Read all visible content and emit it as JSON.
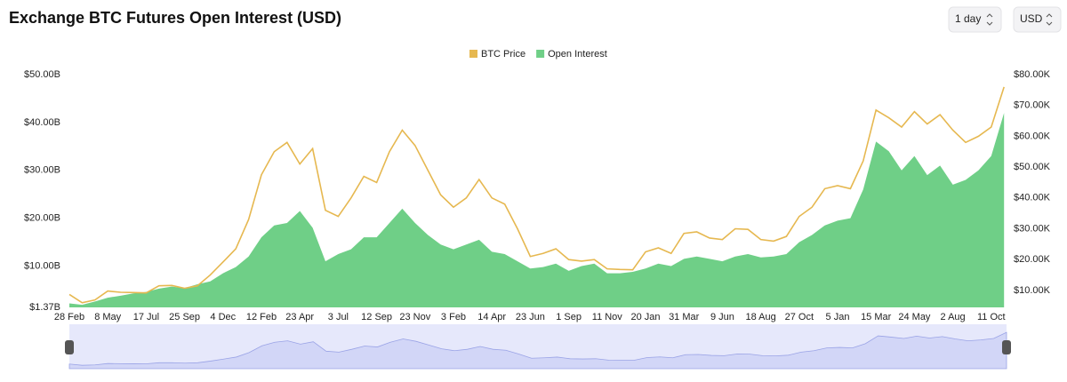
{
  "chart_data": {
    "type": "combo",
    "title": "Exchange BTC Futures Open Interest (USD)",
    "controls": {
      "interval": "1 day",
      "currency": "USD"
    },
    "categories": [
      "28 Feb",
      null,
      null,
      "8 May",
      null,
      null,
      "17 Jul",
      null,
      null,
      "25 Sep",
      null,
      null,
      "4 Dec",
      null,
      null,
      "12 Feb",
      null,
      null,
      "23 Apr",
      null,
      null,
      "3 Jul",
      null,
      null,
      "12 Sep",
      null,
      null,
      "23 Nov",
      null,
      null,
      "3 Feb",
      null,
      null,
      "14 Apr",
      null,
      null,
      "23 Jun",
      null,
      null,
      "1 Sep",
      null,
      null,
      "11 Nov",
      null,
      null,
      "20 Jan",
      null,
      null,
      "31 Mar",
      null,
      null,
      "9 Jun",
      null,
      null,
      "18 Aug",
      null,
      null,
      "27 Oct",
      null,
      null,
      "5 Jan",
      null,
      null,
      "15 Mar",
      null,
      null,
      "24 May",
      null,
      null,
      "2 Aug",
      null,
      null,
      "11 Oct",
      null
    ],
    "series": [
      {
        "name": "BTC Price",
        "color": "#e6b850",
        "type": "line",
        "axis": "y2",
        "values": [
          8.7,
          6.0,
          6.9,
          9.8,
          9.4,
          9.3,
          9.2,
          11.5,
          11.6,
          10.7,
          11.5,
          15.0,
          19.2,
          23.5,
          33.0,
          47.5,
          55.0,
          58.0,
          51.0,
          56.0,
          36.0,
          34.0,
          40.0,
          47.0,
          45.0,
          55.0,
          62.0,
          57.0,
          49.0,
          41.0,
          37.0,
          40.0,
          46.0,
          40.0,
          38.0,
          30.0,
          21.0,
          22.0,
          23.5,
          20.0,
          19.5,
          20.0,
          17.0,
          16.8,
          16.7,
          22.5,
          23.8,
          22.0,
          28.5,
          29.0,
          27.0,
          26.5,
          30.0,
          29.8,
          26.5,
          26.0,
          27.5,
          34.0,
          37.0,
          43.0,
          44.0,
          43.0,
          52.0,
          68.5,
          66.0,
          63.0,
          68.0,
          64.0,
          67.0,
          62.0,
          58.0,
          60.0,
          63.0,
          76.0
        ]
      },
      {
        "name": "Open Interest",
        "color": "#6fcf87",
        "type": "area",
        "axis": "y",
        "values": [
          2.2,
          1.9,
          2.6,
          3.4,
          3.8,
          4.3,
          4.6,
          5.3,
          5.7,
          5.4,
          6.2,
          6.8,
          8.5,
          9.8,
          12.0,
          16.0,
          18.5,
          19.0,
          21.5,
          18.0,
          11.0,
          12.5,
          13.5,
          16.0,
          16.0,
          19.0,
          22.0,
          19.0,
          16.5,
          14.5,
          13.5,
          14.5,
          15.5,
          13.0,
          12.5,
          11.0,
          9.5,
          9.8,
          10.5,
          9.0,
          10.0,
          10.5,
          8.5,
          8.5,
          8.8,
          9.5,
          10.5,
          10.0,
          11.5,
          12.0,
          11.5,
          11.0,
          12.0,
          12.5,
          11.8,
          12.0,
          12.5,
          15.0,
          16.5,
          18.5,
          19.5,
          20.0,
          26.0,
          36.0,
          34.0,
          30.0,
          33.0,
          29.0,
          31.0,
          27.0,
          28.0,
          30.0,
          33.0,
          42.0
        ]
      }
    ],
    "ylim": [
      1.37,
      50
    ],
    "yticks": [
      {
        "value": 1.37,
        "label": "$1.37B"
      },
      {
        "value": 10,
        "label": "$10.00B"
      },
      {
        "value": 20,
        "label": "$20.00B"
      },
      {
        "value": 30,
        "label": "$30.00B"
      },
      {
        "value": 40,
        "label": "$40.00B"
      },
      {
        "value": 50,
        "label": "$50.00B"
      }
    ],
    "y2lim": [
      4.5,
      80
    ],
    "y2ticks": [
      {
        "value": 10,
        "label": "$10.00K"
      },
      {
        "value": 20,
        "label": "$20.00K"
      },
      {
        "value": 30,
        "label": "$30.00K"
      },
      {
        "value": 40,
        "label": "$40.00K"
      },
      {
        "value": 50,
        "label": "$50.00K"
      },
      {
        "value": 60,
        "label": "$60.00K"
      },
      {
        "value": 70,
        "label": "$70.00K"
      },
      {
        "value": 80,
        "label": "$80.00K"
      }
    ],
    "legend": "top"
  }
}
